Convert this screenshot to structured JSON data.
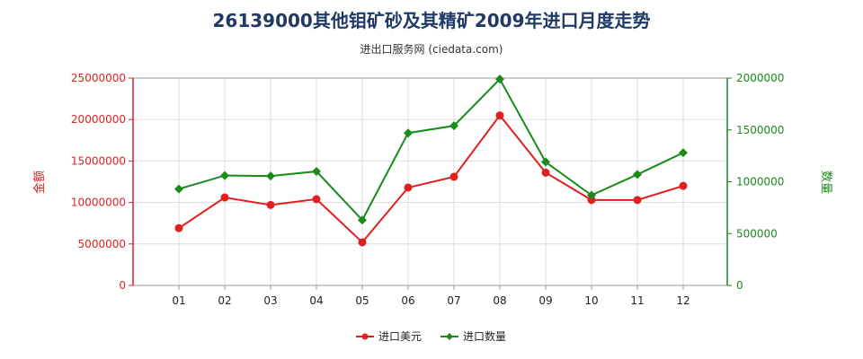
{
  "chart_data": {
    "type": "line",
    "title": "26139000其他钼矿砂及其精矿2009年进口月度走势",
    "subtitle": "进出口服务网 (ciedata.com)",
    "categories": [
      "01",
      "02",
      "03",
      "04",
      "05",
      "06",
      "07",
      "08",
      "09",
      "10",
      "11",
      "12"
    ],
    "y_left": {
      "label": "金额",
      "ylim": [
        0,
        25000000
      ],
      "ticks": [
        0,
        5000000,
        10000000,
        15000000,
        20000000,
        25000000
      ],
      "tick_labels": [
        "0",
        "5000000",
        "10000000",
        "15000000",
        "20000000",
        "25000000"
      ],
      "color": "#e02020"
    },
    "y_right": {
      "label": "数量",
      "ylim": [
        0,
        2000000
      ],
      "ticks": [
        0,
        500000,
        1000000,
        1500000,
        2000000
      ],
      "tick_labels": [
        "0",
        "500000",
        "1000000",
        "1500000",
        "2000000"
      ],
      "color": "#1a8a1a"
    },
    "series": [
      {
        "name": "进口美元",
        "axis": "left",
        "color": "#e02020",
        "values": [
          6900000,
          10600000,
          9700000,
          10400000,
          5200000,
          11800000,
          13100000,
          20500000,
          13600000,
          10300000,
          10300000,
          12000000
        ]
      },
      {
        "name": "进口数量",
        "axis": "right",
        "color": "#1a8a1a",
        "values": [
          930000,
          1060000,
          1055000,
          1100000,
          630000,
          1470000,
          1540000,
          1990000,
          1190000,
          870000,
          1070000,
          1280000
        ]
      }
    ],
    "grid": true,
    "legend": "bottom-center"
  }
}
